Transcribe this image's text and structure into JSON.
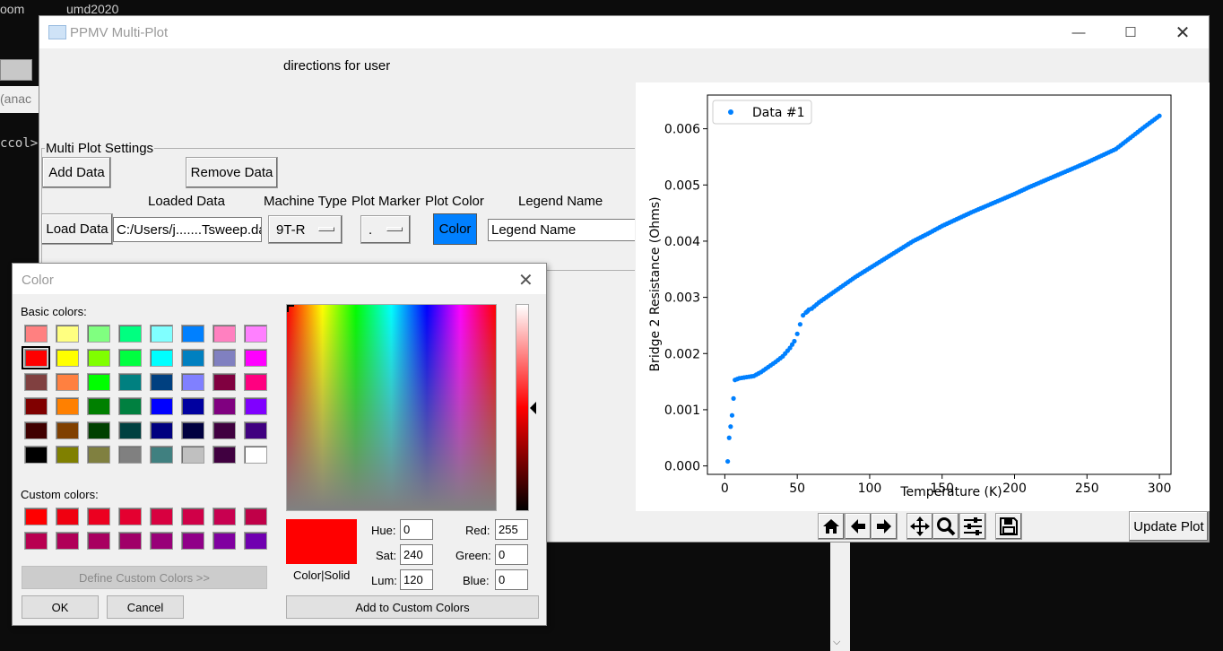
{
  "background": {
    "taskbar_left": "oom",
    "taskbar_center": "umd2020",
    "terminal_tab": "(anac",
    "terminal_prompt": "ccol>"
  },
  "window": {
    "title": "PPMV Multi-Plot",
    "directions": "directions for user"
  },
  "settings": {
    "group_label": "Multi Plot Settings",
    "add_data": "Add Data",
    "remove_data": "Remove Data",
    "col_loaded": "Loaded Data",
    "col_machine": "Machine Type",
    "col_marker": "Plot Marker",
    "col_color": "Plot Color",
    "col_legend": "Legend Name",
    "load_data": "Load Data",
    "loaded_path": "C:/Users/j.......Tsweep.dat",
    "machine_value": "9T-R",
    "marker_value": ".",
    "color_button": "Color",
    "color_button_bg": "#0080ff",
    "legend_value": "Legend Name"
  },
  "plot": {
    "update_button": "Update Plot"
  },
  "chart_data": {
    "type": "scatter",
    "title": "",
    "xlabel": "Temperature (K)",
    "ylabel": "Bridge 2 Resistance (Ohms)",
    "xlim": [
      -12,
      308
    ],
    "ylim": [
      -0.00015,
      0.0066
    ],
    "xticks": [
      "0",
      "50",
      "100",
      "150",
      "200",
      "250",
      "300"
    ],
    "xtick_values": [
      0,
      50,
      100,
      150,
      200,
      250,
      300
    ],
    "yticks": [
      "0.000",
      "0.001",
      "0.002",
      "0.003",
      "0.004",
      "0.005",
      "0.006"
    ],
    "ytick_values": [
      0,
      0.001,
      0.002,
      0.003,
      0.004,
      0.005,
      0.006
    ],
    "grid": false,
    "legend_position": "upper-left",
    "series": [
      {
        "name": "Data #1",
        "color": "#1f77b4",
        "marker": ".",
        "x": [
          2.0,
          3.0,
          4.0,
          5.0,
          6.0,
          7.0,
          10,
          15,
          20,
          25,
          30,
          35,
          40,
          45,
          48,
          50,
          52,
          54,
          56,
          57,
          58,
          60,
          65,
          70,
          80,
          90,
          100,
          110,
          120,
          130,
          140,
          150,
          160,
          170,
          180,
          190,
          200,
          210,
          220,
          230,
          240,
          250,
          260,
          270,
          280,
          290,
          300
        ],
        "y": [
          8e-05,
          0.0005,
          0.0007,
          0.0009,
          0.0012,
          0.00153,
          0.00156,
          0.00158,
          0.0016,
          0.00167,
          0.00176,
          0.00185,
          0.00195,
          0.0021,
          0.00222,
          0.00235,
          0.00252,
          0.00268,
          0.00273,
          0.00275,
          0.00278,
          0.0028,
          0.00291,
          0.003,
          0.00318,
          0.00336,
          0.00352,
          0.00368,
          0.00384,
          0.004,
          0.00413,
          0.00427,
          0.00439,
          0.00451,
          0.00462,
          0.00473,
          0.00484,
          0.00496,
          0.00507,
          0.00518,
          0.00529,
          0.0054,
          0.00552,
          0.00564,
          0.00584,
          0.00604,
          0.00623
        ]
      }
    ]
  },
  "color_dialog": {
    "title": "Color",
    "basic_label": "Basic colors:",
    "custom_label": "Custom colors:",
    "define_custom": "Define Custom Colors >>",
    "ok": "OK",
    "cancel": "Cancel",
    "add_custom": "Add to Custom Colors",
    "color_solid": "Color|Solid",
    "hue_label": "Hue:",
    "hue": "0",
    "sat_label": "Sat:",
    "sat": "240",
    "lum_label": "Lum:",
    "lum": "120",
    "red_label": "Red:",
    "red": "255",
    "green_label": "Green:",
    "green": "0",
    "blue_label": "Blue:",
    "blue": "0",
    "current_color": "#ff0000",
    "basic_colors": [
      "#ff8080",
      "#ffff80",
      "#80ff80",
      "#00ff80",
      "#80ffff",
      "#0080ff",
      "#ff80c0",
      "#ff80ff",
      "#ff0000",
      "#ffff00",
      "#80ff00",
      "#00ff40",
      "#00ffff",
      "#0080c0",
      "#8080c0",
      "#ff00ff",
      "#804040",
      "#ff8040",
      "#00ff00",
      "#008080",
      "#004080",
      "#8080ff",
      "#800040",
      "#ff0080",
      "#800000",
      "#ff8000",
      "#008000",
      "#008040",
      "#0000ff",
      "#0000a0",
      "#800080",
      "#8000ff",
      "#400000",
      "#804000",
      "#004000",
      "#004040",
      "#000080",
      "#000040",
      "#400040",
      "#400080",
      "#000000",
      "#808000",
      "#808040",
      "#808080",
      "#408080",
      "#c0c0c0",
      "#400040",
      "#ffffff"
    ],
    "custom_colors": [
      "#ff0000",
      "#f00010",
      "#ec0020",
      "#e40030",
      "#d80040",
      "#d00048",
      "#c80050",
      "#c00048",
      "#b80050",
      "#b00058",
      "#a80060",
      "#a00068",
      "#980078",
      "#900088",
      "#8000a0",
      "#7000b0"
    ]
  }
}
